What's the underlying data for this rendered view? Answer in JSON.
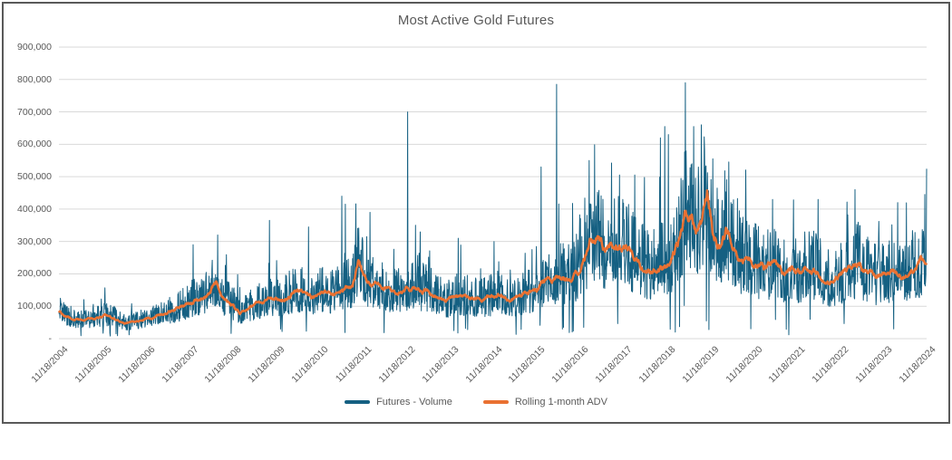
{
  "chart_data": {
    "type": "line",
    "title": "Most Active Gold Futures",
    "xlabel": "",
    "ylabel": "",
    "ylim": [
      0,
      900000
    ],
    "grid": "horizontal",
    "legend_position": "bottom-center",
    "x_range_years": [
      2004.88,
      2024.88
    ],
    "x_tick_labels": [
      "11/18/2004",
      "11/18/2005",
      "11/18/2006",
      "11/18/2007",
      "11/18/2008",
      "11/18/2009",
      "11/18/2010",
      "11/18/2011",
      "11/18/2012",
      "11/18/2013",
      "11/18/2014",
      "11/18/2015",
      "11/18/2016",
      "11/18/2017",
      "11/18/2018",
      "11/18/2019",
      "11/18/2020",
      "11/18/2021",
      "11/18/2022",
      "11/18/2023",
      "11/18/2024"
    ],
    "y_tick_values": [
      0,
      100000,
      200000,
      300000,
      400000,
      500000,
      600000,
      700000,
      800000,
      900000
    ],
    "y_tick_labels": [
      "-",
      "100,000",
      "200,000",
      "300,000",
      "400,000",
      "500,000",
      "600,000",
      "700,000",
      "800,000",
      "900,000"
    ],
    "series": [
      {
        "name": "Futures - Volume",
        "color": "#156082",
        "stroke_width": 1
      },
      {
        "name": "Rolling 1-month ADV",
        "color": "#E97132",
        "stroke_width": 2.5
      }
    ],
    "adv_anchor_points": [
      [
        2004.88,
        85000
      ],
      [
        2005.05,
        70000
      ],
      [
        2005.25,
        60000
      ],
      [
        2005.5,
        57000
      ],
      [
        2005.75,
        64000
      ],
      [
        2005.95,
        72000
      ],
      [
        2006.15,
        66000
      ],
      [
        2006.4,
        47000
      ],
      [
        2006.6,
        52000
      ],
      [
        2006.85,
        60000
      ],
      [
        2007.1,
        68000
      ],
      [
        2007.35,
        78000
      ],
      [
        2007.6,
        92000
      ],
      [
        2007.85,
        108000
      ],
      [
        2008.05,
        125000
      ],
      [
        2008.3,
        140000
      ],
      [
        2008.5,
        170000
      ],
      [
        2008.65,
        125000
      ],
      [
        2008.9,
        105000
      ],
      [
        2009.05,
        82000
      ],
      [
        2009.25,
        96000
      ],
      [
        2009.5,
        112000
      ],
      [
        2009.75,
        132000
      ],
      [
        2010.0,
        118000
      ],
      [
        2010.25,
        140000
      ],
      [
        2010.45,
        150000
      ],
      [
        2010.7,
        126000
      ],
      [
        2010.95,
        146000
      ],
      [
        2011.2,
        140000
      ],
      [
        2011.45,
        158000
      ],
      [
        2011.65,
        172000
      ],
      [
        2011.78,
        250000
      ],
      [
        2011.95,
        182000
      ],
      [
        2012.15,
        162000
      ],
      [
        2012.4,
        150000
      ],
      [
        2012.65,
        138000
      ],
      [
        2012.9,
        158000
      ],
      [
        2013.1,
        148000
      ],
      [
        2013.35,
        152000
      ],
      [
        2013.6,
        128000
      ],
      [
        2013.85,
        120000
      ],
      [
        2014.1,
        132000
      ],
      [
        2014.35,
        128000
      ],
      [
        2014.6,
        118000
      ],
      [
        2014.85,
        128000
      ],
      [
        2015.05,
        140000
      ],
      [
        2015.3,
        124000
      ],
      [
        2015.55,
        130000
      ],
      [
        2015.8,
        148000
      ],
      [
        2016.0,
        162000
      ],
      [
        2016.2,
        178000
      ],
      [
        2016.45,
        198000
      ],
      [
        2016.65,
        188000
      ],
      [
        2016.85,
        215000
      ],
      [
        2017.0,
        250000
      ],
      [
        2017.12,
        320000
      ],
      [
        2017.3,
        305000
      ],
      [
        2017.45,
        278000
      ],
      [
        2017.6,
        312000
      ],
      [
        2017.75,
        298000
      ],
      [
        2017.95,
        278000
      ],
      [
        2018.15,
        252000
      ],
      [
        2018.35,
        228000
      ],
      [
        2018.55,
        214000
      ],
      [
        2018.75,
        232000
      ],
      [
        2018.95,
        248000
      ],
      [
        2019.15,
        298000
      ],
      [
        2019.3,
        385000
      ],
      [
        2019.45,
        392000
      ],
      [
        2019.6,
        338000
      ],
      [
        2019.72,
        378000
      ],
      [
        2019.82,
        458000
      ],
      [
        2019.95,
        328000
      ],
      [
        2020.1,
        298000
      ],
      [
        2020.25,
        342000
      ],
      [
        2020.4,
        305000
      ],
      [
        2020.55,
        252000
      ],
      [
        2020.75,
        242000
      ],
      [
        2020.95,
        228000
      ],
      [
        2021.15,
        214000
      ],
      [
        2021.35,
        226000
      ],
      [
        2021.55,
        204000
      ],
      [
        2021.75,
        216000
      ],
      [
        2021.95,
        196000
      ],
      [
        2022.15,
        224000
      ],
      [
        2022.35,
        212000
      ],
      [
        2022.55,
        184000
      ],
      [
        2022.75,
        178000
      ],
      [
        2022.95,
        196000
      ],
      [
        2023.15,
        214000
      ],
      [
        2023.3,
        234000
      ],
      [
        2023.5,
        204000
      ],
      [
        2023.7,
        188000
      ],
      [
        2023.9,
        208000
      ],
      [
        2024.1,
        196000
      ],
      [
        2024.3,
        202000
      ],
      [
        2024.5,
        214000
      ],
      [
        2024.7,
        228000
      ],
      [
        2024.88,
        252000
      ]
    ],
    "volume_spikes": [
      [
        2007.97,
        290000
      ],
      [
        2008.54,
        320000
      ],
      [
        2009.73,
        365000
      ],
      [
        2010.63,
        345000
      ],
      [
        2011.4,
        440000
      ],
      [
        2011.48,
        415000
      ],
      [
        2012.05,
        390000
      ],
      [
        2012.92,
        700000
      ],
      [
        2013.1,
        350000
      ],
      [
        2014.08,
        310000
      ],
      [
        2014.91,
        300000
      ],
      [
        2015.99,
        530000
      ],
      [
        2016.35,
        785000
      ],
      [
        2017.1,
        550000
      ],
      [
        2017.8,
        505000
      ],
      [
        2018.15,
        505000
      ],
      [
        2018.74,
        620000
      ],
      [
        2018.84,
        655000
      ],
      [
        2018.93,
        630000
      ],
      [
        2019.32,
        790000
      ],
      [
        2019.51,
        655000
      ],
      [
        2019.95,
        555000
      ],
      [
        2020.37,
        420000
      ],
      [
        2020.56,
        395000
      ],
      [
        2021.33,
        430000
      ],
      [
        2022.38,
        430000
      ],
      [
        2023.23,
        460000
      ],
      [
        2024.21,
        420000
      ],
      [
        2024.84,
        445000
      ]
    ],
    "volume_dips": [
      [
        2006.2,
        15000
      ],
      [
        2010.02,
        22000
      ],
      [
        2013.98,
        25000
      ],
      [
        2016.98,
        35000
      ],
      [
        2019.09,
        20000
      ],
      [
        2019.86,
        28000
      ],
      [
        2021.7,
        12000
      ],
      [
        2024.12,
        30000
      ]
    ],
    "render": {
      "seed": 42,
      "points": 2400,
      "base_factor_min": 0.55,
      "factor_range": 1.0,
      "factor_pow": 1.3,
      "burst_prob": 0.06,
      "burst_base": 1.2,
      "burst_rand": 0.45,
      "holiday_prob": 0.012,
      "holiday_scale": 0.18,
      "clamp_max_factor": 2.2,
      "clamp_max_value": 660000,
      "clamp_min_value": 8000,
      "wiggle_step": 0.05,
      "wiggle_damp": 0.96,
      "wiggle_max": 0.09
    },
    "colors": {
      "gridline": "#d9d9d9",
      "axis_line": "#d9d9d9",
      "axis_text": "#595959",
      "title_text": "#595959",
      "frame_border": "#595959",
      "background": "#ffffff"
    }
  }
}
